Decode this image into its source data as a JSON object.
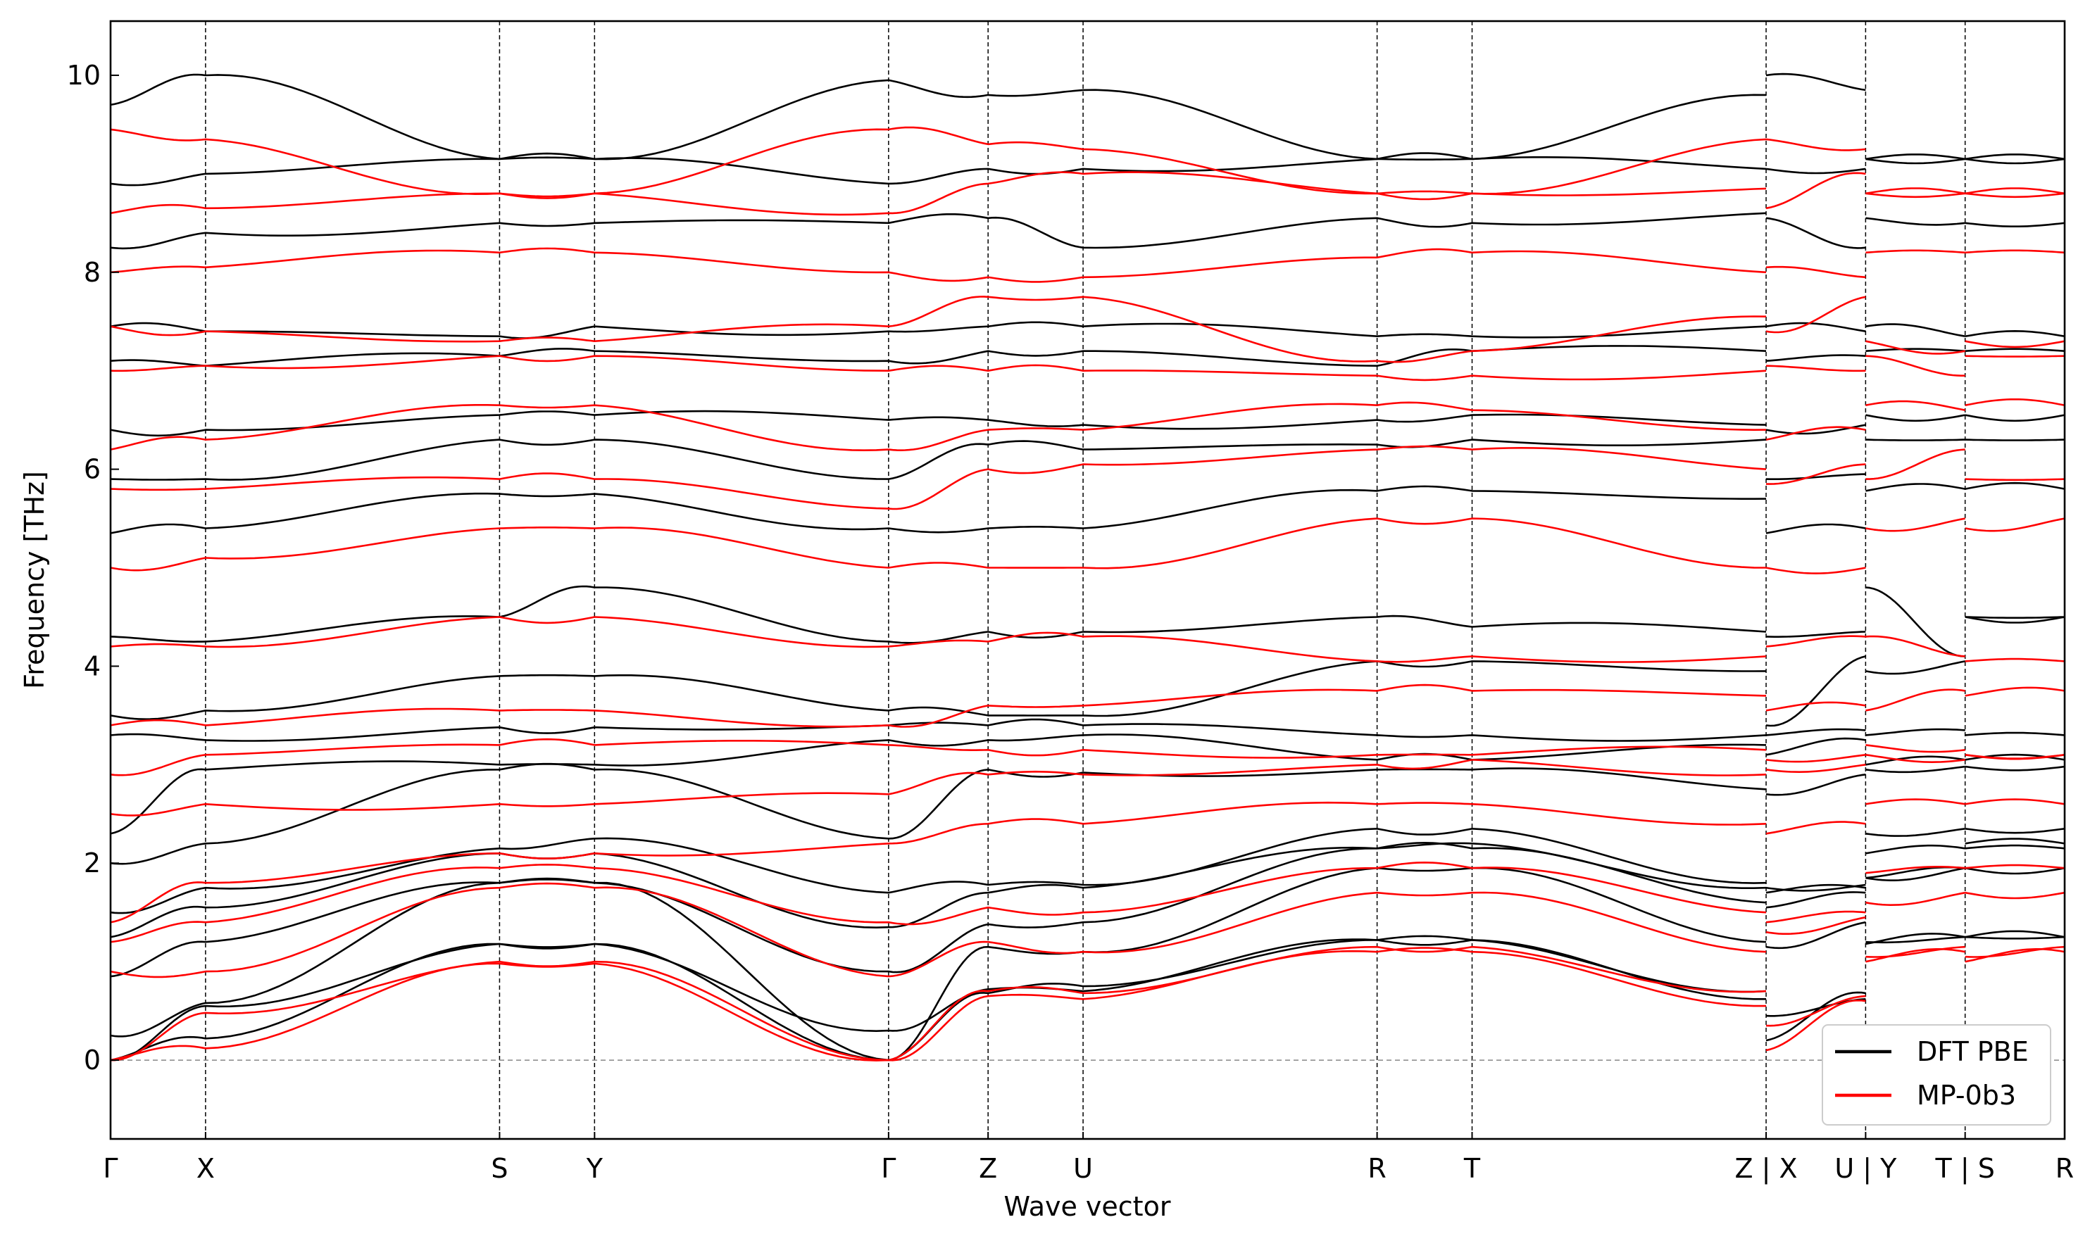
{
  "chart_data": {
    "type": "line",
    "title": "",
    "xlabel": "Wave vector",
    "ylabel": "Frequency [THz]",
    "ylim": [
      -0.8,
      10.55
    ],
    "yticks": [
      0,
      2,
      4,
      6,
      8,
      10
    ],
    "grid": false,
    "legend_position": "bottom-right",
    "zero_reference_line": true,
    "path_segments": [
      {
        "points": [
          "Γ",
          "X",
          "S",
          "Y",
          "Γ",
          "Z",
          "U",
          "R",
          "T",
          "Z"
        ],
        "x": [
          0.0,
          0.42,
          1.72,
          2.14,
          3.44,
          3.88,
          4.3,
          5.6,
          6.02,
          7.32
        ]
      },
      {
        "points": [
          "X",
          "U"
        ],
        "x": [
          7.32,
          7.76
        ]
      },
      {
        "points": [
          "Y",
          "T"
        ],
        "x": [
          7.76,
          8.2
        ]
      },
      {
        "points": [
          "S",
          "R"
        ],
        "x": [
          8.2,
          8.64
        ]
      }
    ],
    "high_symmetry_ticks": [
      {
        "label": "Γ",
        "x": 0.0
      },
      {
        "label": "X",
        "x": 0.42
      },
      {
        "label": "S",
        "x": 1.72
      },
      {
        "label": "Y",
        "x": 2.14
      },
      {
        "label": "Γ",
        "x": 3.44
      },
      {
        "label": "Z",
        "x": 3.88
      },
      {
        "label": "U",
        "x": 4.3
      },
      {
        "label": "R",
        "x": 5.6
      },
      {
        "label": "T",
        "x": 6.02
      },
      {
        "label": "Z | X",
        "x": 7.32
      },
      {
        "label": "U | Y",
        "x": 7.76
      },
      {
        "label": "T | S",
        "x": 8.2
      },
      {
        "label": "R",
        "x": 8.64
      }
    ],
    "series": [
      {
        "name": "DFT PBE",
        "color": "#000000",
        "band_values_at_ticks_thz": [
          [
            0.0,
            0.22,
            1.18,
            1.18,
            0.3,
            0.72,
            0.7,
            1.22,
            1.22,
            0.62,
            0.2,
            0.68,
            1.18,
            1.25,
            1.25,
            1.25
          ],
          [
            0.0,
            0.55,
            1.18,
            1.18,
            0.0,
            0.68,
            0.75,
            1.22,
            1.22,
            0.7,
            0.45,
            0.62,
            1.2,
            1.25,
            1.25,
            1.25
          ],
          [
            0.25,
            0.58,
            1.8,
            1.8,
            0.0,
            1.15,
            1.1,
            1.95,
            1.95,
            1.2,
            1.15,
            1.4,
            1.85,
            1.95,
            1.95,
            1.95
          ],
          [
            0.85,
            1.2,
            1.8,
            1.8,
            0.9,
            1.38,
            1.4,
            2.15,
            2.15,
            1.6,
            1.55,
            1.7,
            1.85,
            1.95,
            2.15,
            2.15
          ],
          [
            1.25,
            1.55,
            2.1,
            2.1,
            1.35,
            1.7,
            1.75,
            2.15,
            2.2,
            1.75,
            1.7,
            1.75,
            2.1,
            2.15,
            2.2,
            2.2
          ],
          [
            1.5,
            1.75,
            2.15,
            2.25,
            1.7,
            1.78,
            1.78,
            2.35,
            2.35,
            1.8,
            1.75,
            1.78,
            2.3,
            2.35,
            2.35,
            2.35
          ],
          [
            2.0,
            2.2,
            2.95,
            2.95,
            2.25,
            2.95,
            2.92,
            2.95,
            2.95,
            2.75,
            2.7,
            2.9,
            2.95,
            2.98,
            2.98,
            2.98
          ],
          [
            2.3,
            2.95,
            3.0,
            3.0,
            3.25,
            3.25,
            3.3,
            3.05,
            3.05,
            3.2,
            3.1,
            3.25,
            3.0,
            3.05,
            3.05,
            3.05
          ],
          [
            3.3,
            3.25,
            3.38,
            3.38,
            3.4,
            3.4,
            3.4,
            3.3,
            3.3,
            3.3,
            3.3,
            3.35,
            3.3,
            3.35,
            3.3,
            3.3
          ],
          [
            3.5,
            3.55,
            3.9,
            3.9,
            3.55,
            3.5,
            3.5,
            4.05,
            4.05,
            3.95,
            3.4,
            4.1,
            3.95,
            4.05,
            4.5,
            4.5
          ],
          [
            4.3,
            4.25,
            4.5,
            4.8,
            4.25,
            4.35,
            4.35,
            4.5,
            4.4,
            4.35,
            4.3,
            4.35,
            4.8,
            4.1,
            4.5,
            4.5
          ],
          [
            5.35,
            5.4,
            5.75,
            5.75,
            5.4,
            5.4,
            5.4,
            5.78,
            5.78,
            5.7,
            5.35,
            5.4,
            5.78,
            5.8,
            5.8,
            5.8
          ],
          [
            5.9,
            5.9,
            6.3,
            6.3,
            5.9,
            6.25,
            6.2,
            6.25,
            6.3,
            6.3,
            5.9,
            5.95,
            6.3,
            6.3,
            6.3,
            6.3
          ],
          [
            6.4,
            6.4,
            6.55,
            6.55,
            6.5,
            6.5,
            6.45,
            6.5,
            6.55,
            6.45,
            6.4,
            6.45,
            6.55,
            6.55,
            6.55,
            6.55
          ],
          [
            7.1,
            7.05,
            7.15,
            7.2,
            7.1,
            7.2,
            7.2,
            7.05,
            7.2,
            7.2,
            7.1,
            7.15,
            7.2,
            7.2,
            7.2,
            7.2
          ],
          [
            7.45,
            7.4,
            7.35,
            7.45,
            7.4,
            7.45,
            7.45,
            7.35,
            7.35,
            7.45,
            7.45,
            7.4,
            7.45,
            7.35,
            7.35,
            7.35
          ],
          [
            8.25,
            8.4,
            8.5,
            8.5,
            8.5,
            8.55,
            8.25,
            8.55,
            8.5,
            8.6,
            8.55,
            8.25,
            8.55,
            8.5,
            8.5,
            8.5
          ],
          [
            8.9,
            9.0,
            9.15,
            9.15,
            8.9,
            9.05,
            9.05,
            9.15,
            9.15,
            9.05,
            9.05,
            9.05,
            9.15,
            9.15,
            9.15,
            9.15
          ],
          [
            9.7,
            10.0,
            9.15,
            9.15,
            9.95,
            9.8,
            9.85,
            9.15,
            9.15,
            9.8,
            10.0,
            9.85,
            9.15,
            9.15,
            9.15,
            9.15
          ]
        ]
      },
      {
        "name": "MP-0b3",
        "color": "#ff0000",
        "band_values_at_ticks_thz": [
          [
            0.0,
            0.12,
            0.98,
            0.98,
            0.0,
            0.65,
            0.62,
            1.1,
            1.1,
            0.55,
            0.1,
            0.6,
            1.0,
            1.1,
            1.0,
            1.1
          ],
          [
            0.0,
            0.48,
            1.0,
            1.0,
            0.0,
            0.7,
            0.68,
            1.15,
            1.15,
            0.7,
            0.35,
            0.65,
            1.05,
            1.15,
            1.05,
            1.15
          ],
          [
            0.9,
            0.9,
            1.75,
            1.75,
            0.85,
            1.2,
            1.1,
            1.7,
            1.7,
            1.1,
            1.3,
            1.45,
            1.6,
            1.7,
            1.7,
            1.7
          ],
          [
            1.2,
            1.4,
            1.95,
            1.95,
            1.4,
            1.55,
            1.5,
            1.95,
            1.95,
            1.5,
            1.4,
            1.5,
            1.9,
            1.95,
            1.95,
            1.95
          ],
          [
            1.4,
            1.8,
            2.1,
            2.1,
            2.2,
            2.4,
            2.4,
            2.6,
            2.6,
            2.4,
            2.3,
            2.4,
            2.6,
            2.6,
            2.6,
            2.6
          ],
          [
            2.5,
            2.6,
            2.6,
            2.6,
            2.7,
            2.9,
            2.9,
            3.0,
            3.05,
            2.9,
            2.95,
            3.0,
            3.1,
            3.05,
            3.1,
            3.1
          ],
          [
            2.9,
            3.1,
            3.2,
            3.2,
            3.2,
            3.15,
            3.15,
            3.1,
            3.1,
            3.15,
            3.05,
            3.1,
            3.2,
            3.15,
            3.1,
            3.1
          ],
          [
            3.4,
            3.4,
            3.55,
            3.55,
            3.4,
            3.6,
            3.6,
            3.75,
            3.75,
            3.7,
            3.55,
            3.6,
            3.55,
            3.75,
            3.7,
            3.75
          ],
          [
            4.2,
            4.2,
            4.5,
            4.5,
            4.2,
            4.25,
            4.3,
            4.05,
            4.1,
            4.1,
            4.2,
            4.3,
            4.3,
            4.1,
            4.05,
            4.05
          ],
          [
            5.0,
            5.1,
            5.4,
            5.4,
            5.0,
            5.0,
            5.0,
            5.5,
            5.5,
            5.0,
            5.0,
            5.0,
            5.4,
            5.5,
            5.4,
            5.5
          ],
          [
            5.8,
            5.8,
            5.9,
            5.9,
            5.6,
            6.0,
            6.05,
            6.2,
            6.2,
            6.0,
            5.85,
            6.05,
            5.9,
            6.2,
            5.9,
            5.9
          ],
          [
            6.2,
            6.3,
            6.65,
            6.65,
            6.2,
            6.4,
            6.4,
            6.65,
            6.6,
            6.4,
            6.3,
            6.4,
            6.65,
            6.6,
            6.65,
            6.65
          ],
          [
            7.0,
            7.05,
            7.15,
            7.15,
            7.0,
            7.0,
            7.0,
            6.95,
            6.95,
            7.0,
            7.05,
            7.0,
            7.15,
            6.95,
            7.15,
            7.15
          ],
          [
            7.45,
            7.4,
            7.3,
            7.3,
            7.45,
            7.75,
            7.75,
            7.1,
            7.2,
            7.55,
            7.4,
            7.75,
            7.3,
            7.2,
            7.3,
            7.3
          ],
          [
            8.0,
            8.05,
            8.2,
            8.2,
            8.0,
            7.95,
            7.95,
            8.15,
            8.2,
            8.0,
            8.05,
            7.95,
            8.2,
            8.2,
            8.2,
            8.2
          ],
          [
            8.6,
            8.65,
            8.8,
            8.8,
            8.6,
            8.9,
            9.0,
            8.8,
            8.8,
            8.85,
            8.65,
            9.0,
            8.8,
            8.8,
            8.8,
            8.8
          ],
          [
            9.45,
            9.35,
            8.8,
            8.8,
            9.45,
            9.3,
            9.25,
            8.8,
            8.8,
            9.35,
            9.35,
            9.25,
            8.8,
            8.8,
            8.8,
            8.8
          ]
        ]
      }
    ]
  },
  "legend": {
    "items": [
      {
        "label": "DFT PBE",
        "color": "#000000"
      },
      {
        "label": "MP-0b3",
        "color": "#ff0000"
      }
    ]
  }
}
